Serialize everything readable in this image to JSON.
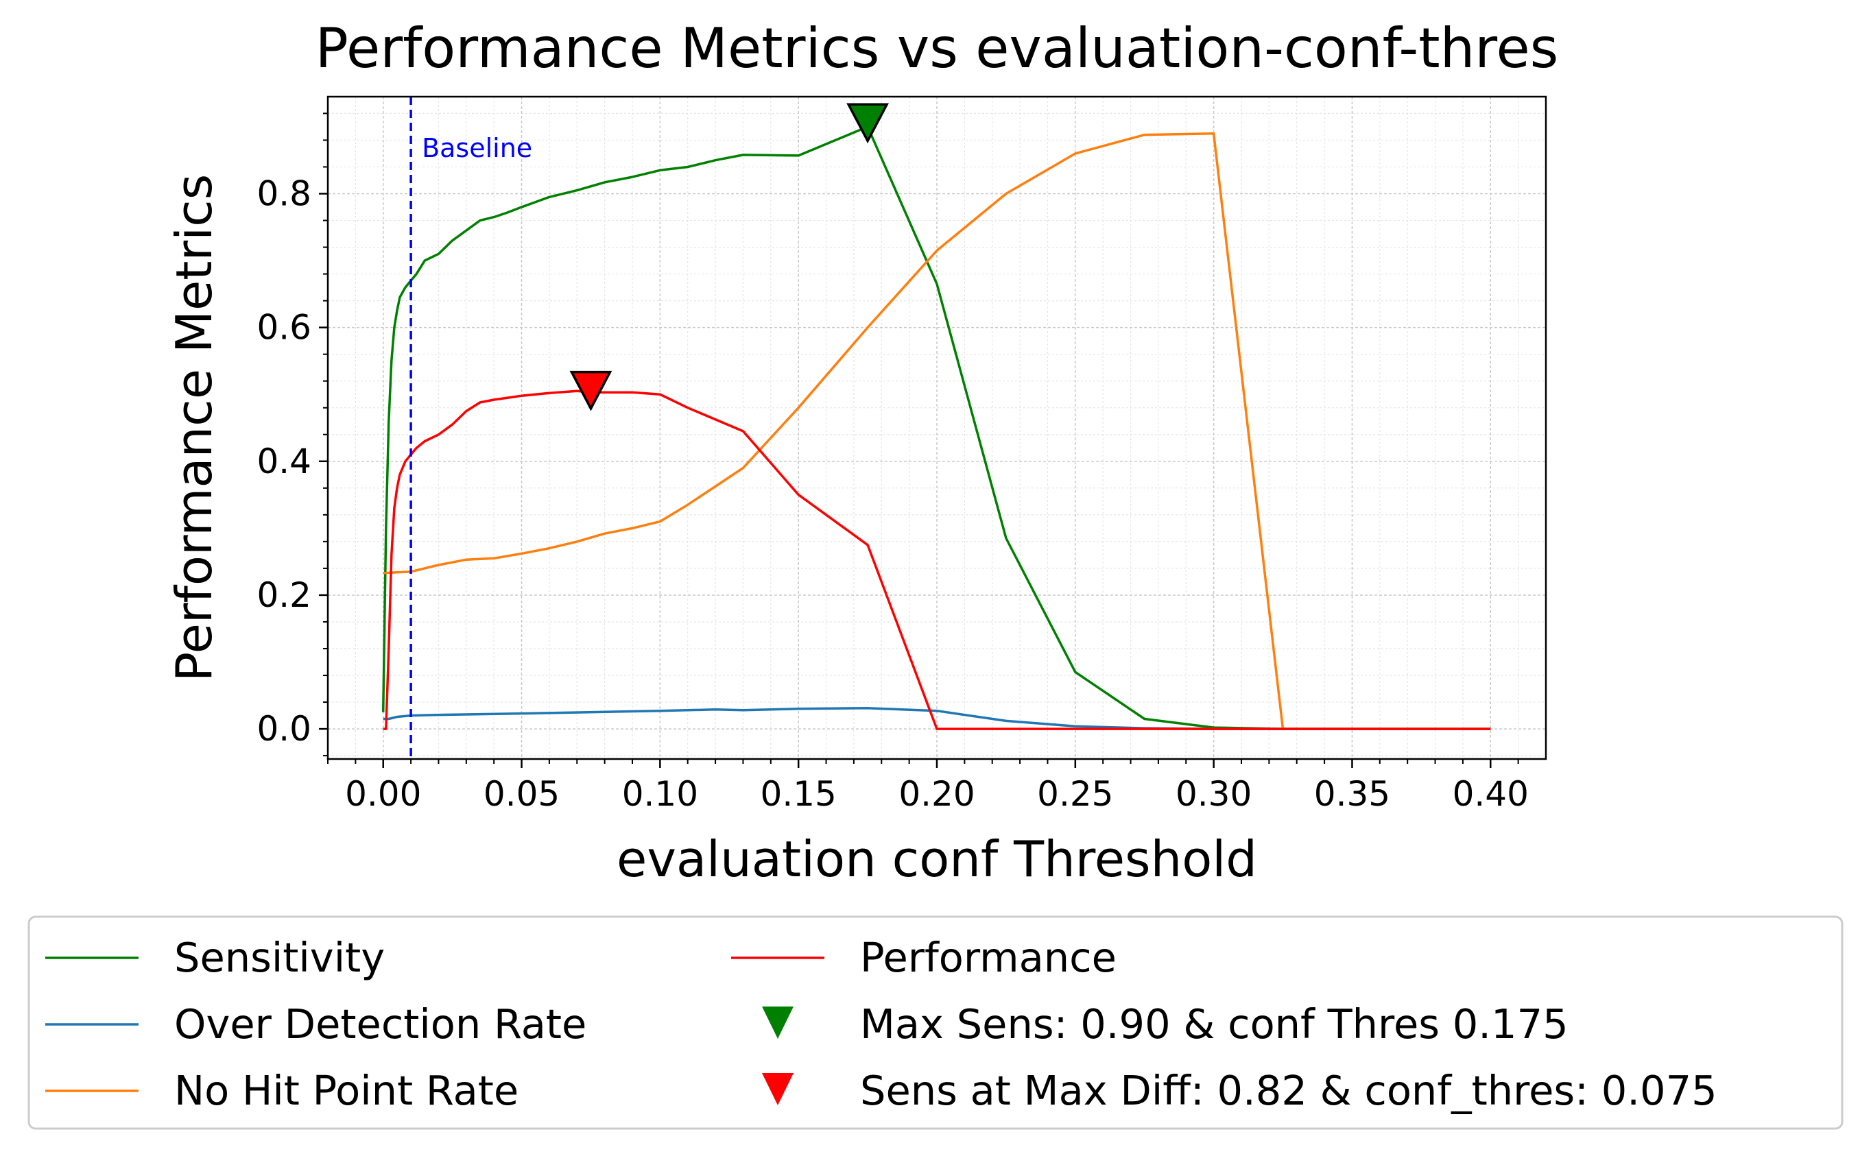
{
  "chart_data": {
    "type": "line",
    "title": "Performance Metrics vs evaluation-conf-thres",
    "xlabel": "evaluation conf Threshold",
    "ylabel": "Performance Metrics",
    "xlim": [
      -0.02,
      0.42
    ],
    "ylim": [
      -0.045,
      0.945
    ],
    "xticks": [
      0.0,
      0.05,
      0.1,
      0.15,
      0.2,
      0.25,
      0.3,
      0.35,
      0.4
    ],
    "xtick_labels": [
      "0.00",
      "0.05",
      "0.10",
      "0.15",
      "0.20",
      "0.25",
      "0.30",
      "0.35",
      "0.40"
    ],
    "yticks": [
      0.0,
      0.2,
      0.4,
      0.6,
      0.8
    ],
    "ytick_labels": [
      "0.0",
      "0.2",
      "0.4",
      "0.6",
      "0.8"
    ],
    "grid": true,
    "legend_position": "below",
    "baseline": {
      "x": 0.01,
      "label": "Baseline",
      "color": "#0000ff"
    },
    "series": [
      {
        "name": "Sensitivity",
        "color": "#008000",
        "x": [
          0.0,
          0.001,
          0.002,
          0.003,
          0.004,
          0.005,
          0.006,
          0.008,
          0.01,
          0.012,
          0.015,
          0.02,
          0.025,
          0.03,
          0.035,
          0.04,
          0.045,
          0.05,
          0.06,
          0.07,
          0.08,
          0.09,
          0.1,
          0.11,
          0.12,
          0.13,
          0.15,
          0.175,
          0.2,
          0.225,
          0.25,
          0.275,
          0.3,
          0.325,
          0.35,
          0.375,
          0.4
        ],
        "y": [
          0.025,
          0.3,
          0.46,
          0.55,
          0.6,
          0.625,
          0.645,
          0.66,
          0.67,
          0.68,
          0.7,
          0.71,
          0.73,
          0.745,
          0.76,
          0.765,
          0.772,
          0.78,
          0.795,
          0.805,
          0.817,
          0.825,
          0.835,
          0.84,
          0.85,
          0.858,
          0.857,
          0.9,
          0.665,
          0.285,
          0.085,
          0.015,
          0.002,
          0.0,
          0.0,
          0.0,
          0.0
        ]
      },
      {
        "name": "Over Detection Rate",
        "color": "#1f77b4",
        "x": [
          0.0,
          0.002,
          0.005,
          0.01,
          0.02,
          0.05,
          0.1,
          0.12,
          0.13,
          0.15,
          0.175,
          0.2,
          0.225,
          0.25,
          0.275,
          0.3,
          0.325,
          0.35,
          0.4
        ],
        "y": [
          0.015,
          0.015,
          0.018,
          0.02,
          0.021,
          0.023,
          0.027,
          0.029,
          0.028,
          0.03,
          0.031,
          0.027,
          0.012,
          0.004,
          0.001,
          0.0,
          0.0,
          0.0,
          0.0
        ]
      },
      {
        "name": "No Hit Point Rate",
        "color": "#ff7f0e",
        "x": [
          0.0,
          0.01,
          0.02,
          0.03,
          0.04,
          0.05,
          0.06,
          0.07,
          0.08,
          0.09,
          0.1,
          0.11,
          0.13,
          0.15,
          0.175,
          0.2,
          0.225,
          0.25,
          0.275,
          0.3,
          0.325,
          0.35,
          0.4
        ],
        "y": [
          0.233,
          0.235,
          0.245,
          0.253,
          0.255,
          0.262,
          0.27,
          0.28,
          0.292,
          0.3,
          0.31,
          0.335,
          0.39,
          0.48,
          0.6,
          0.715,
          0.8,
          0.86,
          0.888,
          0.89,
          0.0,
          0.0,
          0.0
        ]
      },
      {
        "name": "Performance",
        "color": "#ff0000",
        "x": [
          0.0,
          0.001,
          0.002,
          0.003,
          0.004,
          0.005,
          0.006,
          0.008,
          0.01,
          0.012,
          0.015,
          0.02,
          0.025,
          0.03,
          0.035,
          0.04,
          0.045,
          0.05,
          0.06,
          0.07,
          0.075,
          0.08,
          0.09,
          0.1,
          0.11,
          0.13,
          0.15,
          0.175,
          0.2,
          0.225,
          0.25,
          0.3,
          0.35,
          0.4
        ],
        "y": [
          0.0,
          0.0,
          0.12,
          0.26,
          0.33,
          0.36,
          0.38,
          0.4,
          0.41,
          0.42,
          0.43,
          0.44,
          0.455,
          0.475,
          0.488,
          0.492,
          0.495,
          0.498,
          0.502,
          0.505,
          0.503,
          0.503,
          0.503,
          0.5,
          0.48,
          0.445,
          0.35,
          0.275,
          0.0,
          0.0,
          0.0,
          0.0,
          0.0,
          0.0
        ]
      }
    ],
    "markers": [
      {
        "name": "Max Sens: 0.90 & conf Thres 0.175",
        "x": 0.175,
        "y": 0.9,
        "color": "#008000"
      },
      {
        "name": "Sens at Max Diff: 0.82 & conf_thres: 0.075",
        "x": 0.075,
        "y": 0.5,
        "color": "#ff0000"
      }
    ]
  }
}
